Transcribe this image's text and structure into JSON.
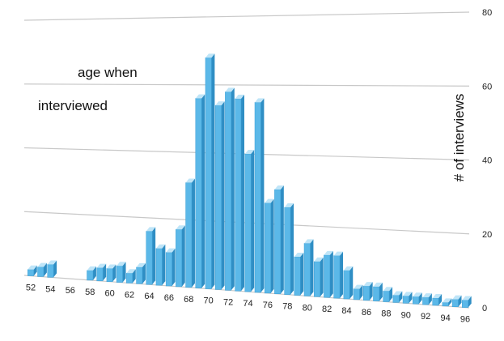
{
  "chart_data": {
    "type": "bar",
    "title": "",
    "xlabel": "",
    "ylabel": "# of interviews",
    "annotation": [
      "age when",
      "interviewed"
    ],
    "ylim": [
      0,
      80
    ],
    "yticks": [
      0,
      20,
      40,
      60,
      80
    ],
    "grid": true,
    "legend": "none",
    "bar_color": "#5bb8e8",
    "x": [
      52,
      53,
      54,
      55,
      56,
      57,
      58,
      59,
      60,
      61,
      62,
      63,
      64,
      65,
      66,
      67,
      68,
      69,
      70,
      71,
      72,
      73,
      74,
      75,
      76,
      77,
      78,
      79,
      80,
      81,
      82,
      83,
      84,
      85,
      86,
      87,
      88,
      89,
      90,
      91,
      92,
      93,
      94,
      95,
      96
    ],
    "categories": [
      52,
      54,
      56,
      58,
      60,
      62,
      64,
      66,
      68,
      70,
      72,
      74,
      76,
      78,
      80,
      82,
      84,
      86,
      88,
      90,
      92,
      94,
      96
    ],
    "values": [
      2,
      3,
      4,
      0,
      0,
      0,
      3,
      4,
      4,
      5,
      3,
      5,
      16,
      11,
      10,
      17,
      31,
      56,
      68,
      54,
      58,
      56,
      40,
      55,
      26,
      30,
      25,
      11,
      15,
      10,
      12,
      12,
      8,
      3,
      4,
      4,
      3,
      2,
      2,
      2,
      2,
      2,
      1,
      2,
      2
    ]
  }
}
